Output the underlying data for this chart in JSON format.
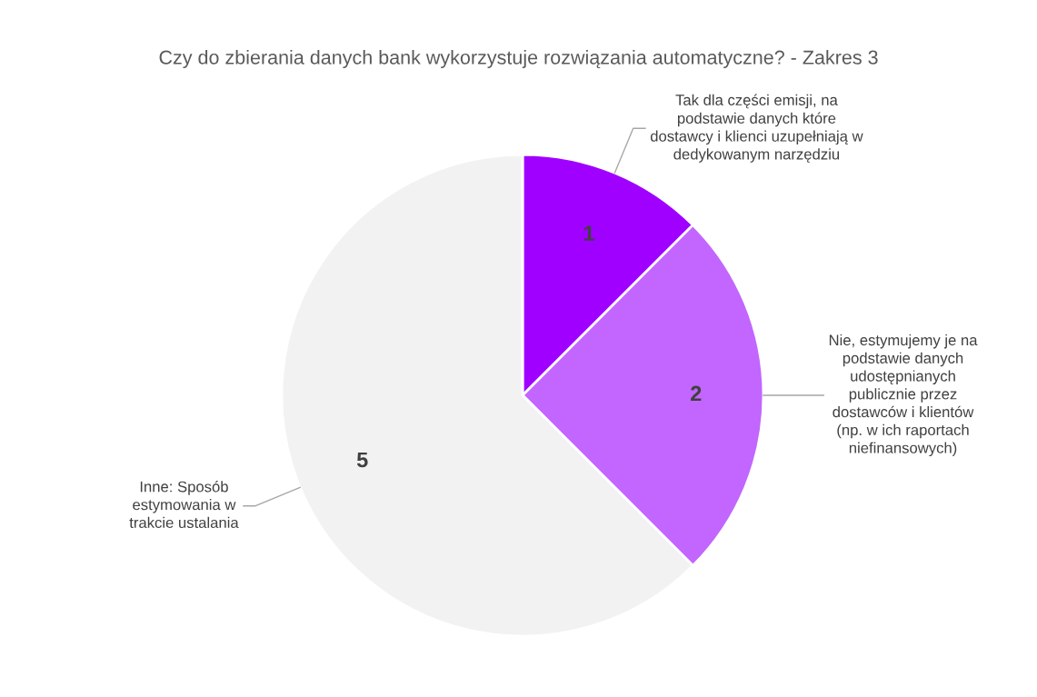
{
  "chart_data": {
    "type": "pie",
    "title": "Czy do zbierania danych bank wykorzystuje rozwiązania automatyczne? - Zakres 3",
    "categories": [
      "Tak dla części emisji, na\npodstawie danych które\ndostawcy i klienci uzupełniają w\ndedykowanym narzędziu",
      "Nie, estymujemy je na\npodstawie danych\nudostępnianych\npublicznie przez\ndostawców i klientów\n(np. w ich raportach\nniefinansowych)",
      "Inne: Sposób\nestymowania w\ntrakcie ustalania"
    ],
    "values": [
      1,
      2,
      5
    ],
    "colors": [
      "#a000ff",
      "#c266ff",
      "#f2f2f2"
    ],
    "data_labels": true
  }
}
